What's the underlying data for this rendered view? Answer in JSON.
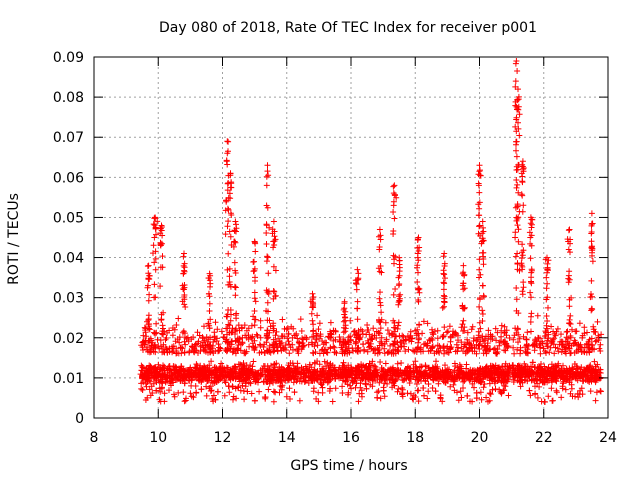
{
  "chart_data": {
    "type": "scatter",
    "title": "Day 080 of 2018, Rate Of TEC Index for receiver p001",
    "xlabel": "GPS time / hours",
    "ylabel": "ROTI / TECUs",
    "xlim": [
      8,
      24
    ],
    "ylim": [
      0,
      0.09
    ],
    "x_ticks": [
      "8",
      "10",
      "12",
      "14",
      "16",
      "18",
      "20",
      "22",
      "24"
    ],
    "y_ticks": [
      "0",
      "0.01",
      "0.02",
      "0.03",
      "0.04",
      "0.05",
      "0.06",
      "0.07",
      "0.08",
      "0.09"
    ],
    "grid": true,
    "marker": "+",
    "color": "#ff0000",
    "data_range_x": [
      9.45,
      23.8
    ],
    "baseline_y": [
      0.004,
      0.02
    ],
    "peaks": [
      {
        "x": 9.7,
        "y": 0.038
      },
      {
        "x": 9.9,
        "y": 0.05
      },
      {
        "x": 10.1,
        "y": 0.048
      },
      {
        "x": 10.8,
        "y": 0.041
      },
      {
        "x": 11.6,
        "y": 0.036
      },
      {
        "x": 12.15,
        "y": 0.069
      },
      {
        "x": 12.25,
        "y": 0.061
      },
      {
        "x": 12.4,
        "y": 0.049
      },
      {
        "x": 13.0,
        "y": 0.044
      },
      {
        "x": 13.4,
        "y": 0.063
      },
      {
        "x": 13.6,
        "y": 0.049
      },
      {
        "x": 14.8,
        "y": 0.031
      },
      {
        "x": 15.8,
        "y": 0.029
      },
      {
        "x": 16.2,
        "y": 0.037
      },
      {
        "x": 16.9,
        "y": 0.047
      },
      {
        "x": 17.35,
        "y": 0.058
      },
      {
        "x": 17.5,
        "y": 0.04
      },
      {
        "x": 18.1,
        "y": 0.045
      },
      {
        "x": 18.9,
        "y": 0.041
      },
      {
        "x": 19.5,
        "y": 0.038
      },
      {
        "x": 20.0,
        "y": 0.063
      },
      {
        "x": 20.1,
        "y": 0.049
      },
      {
        "x": 21.15,
        "y": 0.089
      },
      {
        "x": 21.2,
        "y": 0.082
      },
      {
        "x": 21.35,
        "y": 0.064
      },
      {
        "x": 21.6,
        "y": 0.05
      },
      {
        "x": 22.1,
        "y": 0.04
      },
      {
        "x": 22.8,
        "y": 0.047
      },
      {
        "x": 23.5,
        "y": 0.051
      }
    ]
  }
}
